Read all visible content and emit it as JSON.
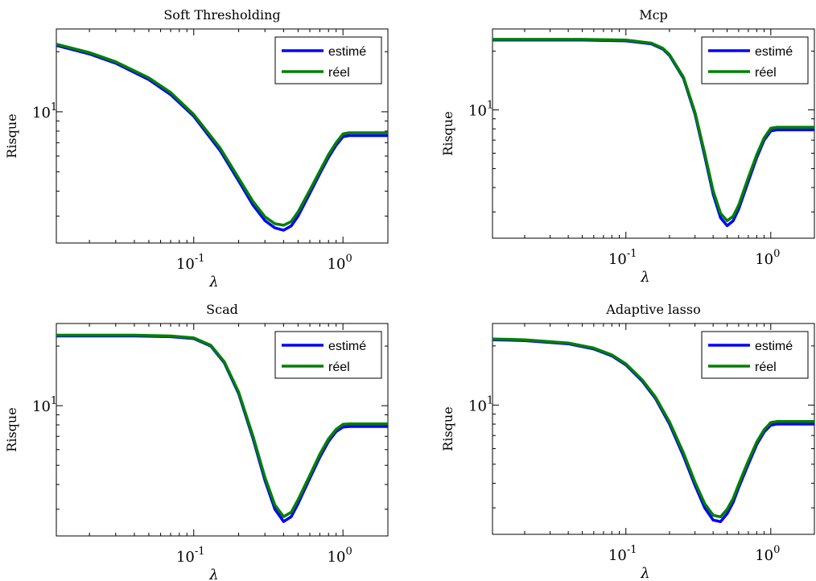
{
  "chart_data": [
    {
      "type": "line",
      "title": "Soft Thresholding",
      "xlabel": "λ",
      "ylabel": "Risque",
      "xscale": "log",
      "yscale": "log",
      "xlim": [
        0.012,
        2.0
      ],
      "ylim": [
        2.2,
        26
      ],
      "xticks": [
        {
          "base": "10",
          "exp": "-1",
          "value": 0.1
        },
        {
          "base": "10",
          "exp": "0",
          "value": 1.0
        }
      ],
      "yticks": [
        {
          "base": "10",
          "exp": "1",
          "value": 10
        }
      ],
      "grid": false,
      "legend_position": "top-right",
      "series": [
        {
          "name": "estimé",
          "color": "#0000ff",
          "x": [
            0.012,
            0.02,
            0.03,
            0.05,
            0.07,
            0.1,
            0.15,
            0.2,
            0.25,
            0.3,
            0.35,
            0.4,
            0.45,
            0.5,
            0.6,
            0.7,
            0.8,
            0.9,
            1.0,
            1.1,
            1.5,
            2.0
          ],
          "y": [
            21.5,
            19.5,
            17.5,
            14.5,
            12.2,
            9.5,
            6.4,
            4.5,
            3.4,
            2.85,
            2.62,
            2.55,
            2.68,
            3.0,
            3.9,
            4.9,
            5.9,
            6.8,
            7.5,
            7.6,
            7.6,
            7.6
          ]
        },
        {
          "name": "réel",
          "color": "#008000",
          "x": [
            0.012,
            0.02,
            0.03,
            0.05,
            0.07,
            0.1,
            0.15,
            0.2,
            0.25,
            0.3,
            0.35,
            0.4,
            0.45,
            0.5,
            0.6,
            0.7,
            0.8,
            0.9,
            1.0,
            1.1,
            1.5,
            2.0
          ],
          "y": [
            21.8,
            19.8,
            17.8,
            14.8,
            12.5,
            9.7,
            6.6,
            4.65,
            3.55,
            2.98,
            2.75,
            2.7,
            2.82,
            3.15,
            4.05,
            5.05,
            6.1,
            7.0,
            7.75,
            7.85,
            7.85,
            7.85
          ]
        }
      ]
    },
    {
      "type": "line",
      "title": "Mcp",
      "xlabel": "λ",
      "ylabel": "Risque",
      "xscale": "log",
      "yscale": "log",
      "xlim": [
        0.012,
        2.0
      ],
      "ylim": [
        2.2,
        26
      ],
      "xticks": [
        {
          "base": "10",
          "exp": "-1",
          "value": 0.1
        },
        {
          "base": "10",
          "exp": "0",
          "value": 1.0
        }
      ],
      "yticks": [
        {
          "base": "10",
          "exp": "1",
          "value": 10
        }
      ],
      "grid": false,
      "legend_position": "top-right",
      "series": [
        {
          "name": "estimé",
          "color": "#0000ff",
          "x": [
            0.012,
            0.05,
            0.1,
            0.15,
            0.18,
            0.2,
            0.25,
            0.3,
            0.35,
            0.4,
            0.45,
            0.5,
            0.55,
            0.6,
            0.7,
            0.8,
            0.9,
            1.0,
            1.1,
            1.5,
            2.0
          ],
          "y": [
            22.8,
            22.8,
            22.6,
            21.8,
            20.5,
            19.0,
            14.5,
            9.5,
            5.8,
            3.7,
            2.8,
            2.55,
            2.7,
            3.1,
            4.3,
            5.7,
            7.0,
            7.8,
            7.9,
            7.9,
            7.9
          ]
        },
        {
          "name": "réel",
          "color": "#008000",
          "x": [
            0.012,
            0.05,
            0.1,
            0.15,
            0.18,
            0.2,
            0.25,
            0.3,
            0.35,
            0.4,
            0.45,
            0.5,
            0.55,
            0.6,
            0.7,
            0.8,
            0.9,
            1.0,
            1.1,
            1.5,
            2.0
          ],
          "y": [
            23.0,
            23.0,
            22.8,
            22.0,
            20.7,
            19.2,
            14.7,
            9.7,
            6.0,
            3.85,
            2.95,
            2.7,
            2.85,
            3.25,
            4.5,
            5.9,
            7.2,
            8.05,
            8.15,
            8.15,
            8.15
          ]
        }
      ]
    },
    {
      "type": "line",
      "title": "Scad",
      "xlabel": "λ",
      "ylabel": "Risque",
      "xscale": "log",
      "yscale": "log",
      "xlim": [
        0.012,
        2.0
      ],
      "ylim": [
        2.2,
        26
      ],
      "xticks": [
        {
          "base": "10",
          "exp": "-1",
          "value": 0.1
        },
        {
          "base": "10",
          "exp": "0",
          "value": 1.0
        }
      ],
      "yticks": [
        {
          "base": "10",
          "exp": "1",
          "value": 10
        }
      ],
      "grid": false,
      "legend_position": "top-right",
      "series": [
        {
          "name": "estimé",
          "color": "#0000ff",
          "x": [
            0.012,
            0.04,
            0.07,
            0.1,
            0.13,
            0.16,
            0.2,
            0.25,
            0.3,
            0.35,
            0.4,
            0.45,
            0.5,
            0.6,
            0.7,
            0.8,
            0.9,
            1.0,
            1.1,
            1.5,
            2.0
          ],
          "y": [
            22.5,
            22.5,
            22.3,
            21.8,
            20.0,
            16.5,
            11.5,
            6.8,
            4.2,
            3.0,
            2.6,
            2.75,
            3.2,
            4.3,
            5.5,
            6.6,
            7.4,
            7.8,
            7.85,
            7.85,
            7.85
          ]
        },
        {
          "name": "réel",
          "color": "#008000",
          "x": [
            0.012,
            0.04,
            0.07,
            0.1,
            0.13,
            0.16,
            0.2,
            0.25,
            0.3,
            0.35,
            0.4,
            0.45,
            0.5,
            0.6,
            0.7,
            0.8,
            0.9,
            1.0,
            1.1,
            1.5,
            2.0
          ],
          "y": [
            22.7,
            22.7,
            22.5,
            22.0,
            20.2,
            16.7,
            11.7,
            7.0,
            4.35,
            3.15,
            2.75,
            2.9,
            3.35,
            4.45,
            5.7,
            6.8,
            7.6,
            8.05,
            8.1,
            8.1,
            8.1
          ]
        }
      ]
    },
    {
      "type": "line",
      "title": "Adaptive lasso",
      "xlabel": "λ",
      "ylabel": "Risque",
      "xscale": "log",
      "yscale": "log",
      "xlim": [
        0.012,
        2.0
      ],
      "ylim": [
        2.2,
        26
      ],
      "xticks": [
        {
          "base": "10",
          "exp": "-1",
          "value": 0.1
        },
        {
          "base": "10",
          "exp": "0",
          "value": 1.0
        }
      ],
      "yticks": [
        {
          "base": "10",
          "exp": "1",
          "value": 10
        }
      ],
      "grid": false,
      "legend_position": "top-right",
      "series": [
        {
          "name": "estimé",
          "color": "#0000ff",
          "x": [
            0.012,
            0.02,
            0.04,
            0.06,
            0.08,
            0.1,
            0.13,
            0.16,
            0.2,
            0.25,
            0.3,
            0.35,
            0.4,
            0.45,
            0.5,
            0.55,
            0.6,
            0.7,
            0.8,
            0.9,
            1.0,
            1.1,
            1.5,
            2.0
          ],
          "y": [
            21.5,
            21.3,
            20.5,
            19.3,
            17.8,
            16.0,
            13.2,
            10.8,
            8.0,
            5.5,
            3.9,
            3.0,
            2.6,
            2.55,
            2.8,
            3.2,
            3.8,
            5.0,
            6.3,
            7.3,
            7.9,
            8.0,
            8.0,
            8.0
          ]
        },
        {
          "name": "réel",
          "color": "#008000",
          "x": [
            0.012,
            0.02,
            0.04,
            0.06,
            0.08,
            0.1,
            0.13,
            0.16,
            0.2,
            0.25,
            0.3,
            0.35,
            0.4,
            0.45,
            0.5,
            0.55,
            0.6,
            0.7,
            0.8,
            0.9,
            1.0,
            1.1,
            1.5,
            2.0
          ],
          "y": [
            21.7,
            21.5,
            20.7,
            19.5,
            18.0,
            16.2,
            13.4,
            11.0,
            8.2,
            5.7,
            4.05,
            3.15,
            2.75,
            2.7,
            2.95,
            3.35,
            3.95,
            5.2,
            6.5,
            7.5,
            8.15,
            8.25,
            8.25,
            8.25
          ]
        }
      ]
    }
  ]
}
